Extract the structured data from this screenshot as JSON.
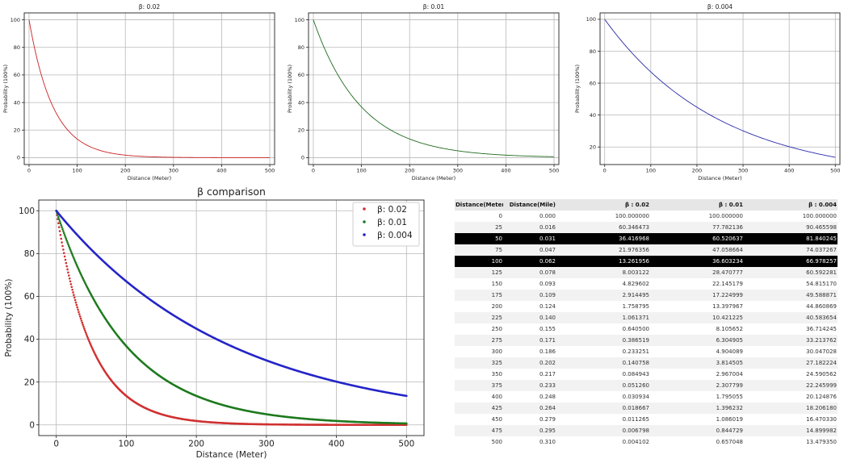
{
  "chart_data": [
    {
      "type": "line",
      "title": "β: 0.02",
      "xlabel": "Distance (Meter)",
      "ylabel": "Probability (100%)",
      "xlim": [
        -10,
        510
      ],
      "ylim": [
        -5,
        105
      ],
      "xticks": [
        0,
        100,
        200,
        300,
        400,
        500
      ],
      "yticks": [
        0,
        20,
        40,
        60,
        80,
        100
      ],
      "grid": true,
      "series": [
        {
          "beta": 0.02,
          "color": "#cc2222"
        }
      ]
    },
    {
      "type": "line",
      "title": "β: 0.01",
      "xlabel": "Distance (Meter)",
      "ylabel": "Probability (100%)",
      "xlim": [
        -10,
        510
      ],
      "ylim": [
        -5,
        105
      ],
      "xticks": [
        0,
        100,
        200,
        300,
        400,
        500
      ],
      "yticks": [
        0,
        20,
        40,
        60,
        80,
        100
      ],
      "grid": true,
      "series": [
        {
          "beta": 0.01,
          "color": "#1e6b1e"
        }
      ]
    },
    {
      "type": "line",
      "title": "β: 0.004",
      "xlabel": "Distance (Meter)",
      "ylabel": "Probability (100%)",
      "xlim": [
        -10,
        510
      ],
      "ylim": [
        9,
        104
      ],
      "xticks": [
        0,
        100,
        200,
        300,
        400,
        500
      ],
      "yticks": [
        20,
        40,
        60,
        80,
        100
      ],
      "grid": true,
      "series": [
        {
          "beta": 0.004,
          "color": "#2a2aaa"
        }
      ]
    },
    {
      "type": "scatter",
      "title": "β comparison",
      "xlabel": "Distance (Meter)",
      "ylabel": "Probability (100%)",
      "xlim": [
        -25,
        525
      ],
      "ylim": [
        -5,
        105
      ],
      "xticks": [
        0,
        100,
        200,
        300,
        400,
        500
      ],
      "yticks": [
        0,
        20,
        40,
        60,
        80,
        100
      ],
      "grid": true,
      "legend": "top-right",
      "series": [
        {
          "name": "β: 0.02",
          "beta": 0.02,
          "color": "#d03030"
        },
        {
          "name": "β: 0.01",
          "beta": 0.01,
          "color": "#1e7a1e"
        },
        {
          "name": "β: 0.004",
          "beta": 0.004,
          "color": "#2525c8"
        }
      ]
    }
  ],
  "table": {
    "columns": [
      "Distance(Meter)",
      "Distance(Mile)",
      "β : 0.02",
      "β : 0.01",
      "β : 0.004"
    ],
    "highlighted_rows": [
      2,
      4
    ],
    "rows": [
      [
        "0",
        "0.000",
        "100.000000",
        "100.000000",
        "100.000000"
      ],
      [
        "25",
        "0.016",
        "60.346473",
        "77.782136",
        "90.465598"
      ],
      [
        "50",
        "0.031",
        "36.416968",
        "60.520637",
        "81.840245"
      ],
      [
        "75",
        "0.047",
        "21.976356",
        "47.058664",
        "74.037267"
      ],
      [
        "100",
        "0.062",
        "13.261956",
        "36.603234",
        "66.978257"
      ],
      [
        "125",
        "0.078",
        "8.003122",
        "28.470777",
        "60.592281"
      ],
      [
        "150",
        "0.093",
        "4.829602",
        "22.145179",
        "54.815170"
      ],
      [
        "175",
        "0.109",
        "2.914495",
        "17.224999",
        "49.588871"
      ],
      [
        "200",
        "0.124",
        "1.758795",
        "13.397967",
        "44.860869"
      ],
      [
        "225",
        "0.140",
        "1.061371",
        "10.421225",
        "40.583654"
      ],
      [
        "250",
        "0.155",
        "0.640500",
        "8.105652",
        "36.714245"
      ],
      [
        "275",
        "0.171",
        "0.386519",
        "6.304905",
        "33.213762"
      ],
      [
        "300",
        "0.186",
        "0.233251",
        "4.904089",
        "30.047028"
      ],
      [
        "325",
        "0.202",
        "0.140758",
        "3.814505",
        "27.182224"
      ],
      [
        "350",
        "0.217",
        "0.084943",
        "2.967004",
        "24.590562"
      ],
      [
        "375",
        "0.233",
        "0.051260",
        "2.307799",
        "22.245999"
      ],
      [
        "400",
        "0.248",
        "0.030934",
        "1.795055",
        "20.124876"
      ],
      [
        "425",
        "0.264",
        "0.018667",
        "1.396232",
        "18.206180"
      ],
      [
        "450",
        "0.279",
        "0.011265",
        "1.086019",
        "16.470330"
      ],
      [
        "475",
        "0.295",
        "0.006798",
        "0.844729",
        "14.899982"
      ],
      [
        "500",
        "0.310",
        "0.004102",
        "0.657048",
        "13.479350"
      ]
    ]
  }
}
